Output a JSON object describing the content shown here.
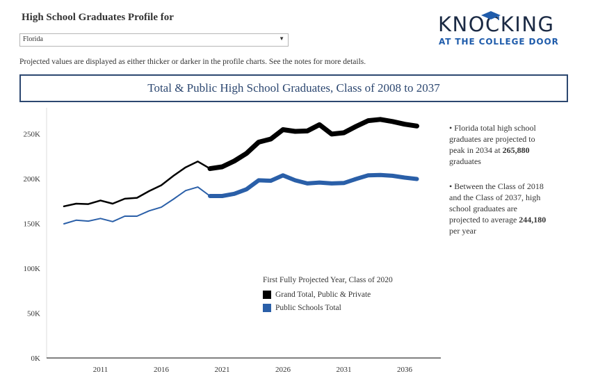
{
  "header": {
    "title": "High School Graduates Profile for",
    "state_select": "Florida",
    "note": "Projected values are displayed as either thicker or darker in the profile charts. See the notes for more details."
  },
  "logo": {
    "line1": "KNOCKING",
    "line2": "AT THE COLLEGE DOOR"
  },
  "chart_title": "Total & Public High School Graduates, Class of 2008 to 2037",
  "notes": {
    "n1_pre": "• Florida total high school graduates are projected to peak in 2034 at ",
    "n1_bold": "265,880",
    "n1_post": " graduates",
    "n2_pre": "• Between the Class of 2018 and the Class of 2037, high school graduates are projected to average ",
    "n2_bold": "244,180",
    "n2_post": " per year"
  },
  "legend": {
    "title": "First Fully Projected Year, Class of 2020",
    "items": [
      "Grand Total, Public & Private",
      "Public Schools Total"
    ]
  },
  "colors": {
    "total": "#000000",
    "public": "#2a5fa8"
  },
  "chart_data": {
    "type": "line",
    "x": [
      2008,
      2009,
      2010,
      2011,
      2012,
      2013,
      2014,
      2015,
      2016,
      2017,
      2018,
      2019,
      2020,
      2021,
      2022,
      2023,
      2024,
      2025,
      2026,
      2027,
      2028,
      2029,
      2030,
      2031,
      2032,
      2033,
      2034,
      2035,
      2036,
      2037
    ],
    "series": [
      {
        "name": "Grand Total, Public & Private",
        "values": [
          169000,
          172000,
          171500,
          175500,
          172000,
          177500,
          178500,
          186000,
          192500,
          203000,
          212500,
          219000,
          211000,
          213000,
          219500,
          228000,
          240500,
          244000,
          254500,
          252500,
          253000,
          260000,
          249500,
          251000,
          258000,
          264500,
          265880,
          263500,
          260500,
          258500
        ]
      },
      {
        "name": "Public Schools Total",
        "values": [
          149500,
          153500,
          152500,
          155500,
          152000,
          158000,
          158000,
          164000,
          168000,
          177000,
          186500,
          190500,
          180500,
          180500,
          183000,
          188000,
          198000,
          197500,
          203500,
          198000,
          194500,
          195500,
          194500,
          195000,
          199500,
          203500,
          204000,
          203000,
          201000,
          199500
        ]
      }
    ],
    "first_projected_year": 2020,
    "ylim": [
      0,
      275000
    ],
    "yticks": [
      "0K",
      "50K",
      "100K",
      "150K",
      "200K",
      "250K"
    ],
    "ytick_values": [
      0,
      50000,
      100000,
      150000,
      200000,
      250000
    ],
    "xticks": [
      2011,
      2016,
      2021,
      2026,
      2031,
      2036
    ],
    "grid": false
  }
}
